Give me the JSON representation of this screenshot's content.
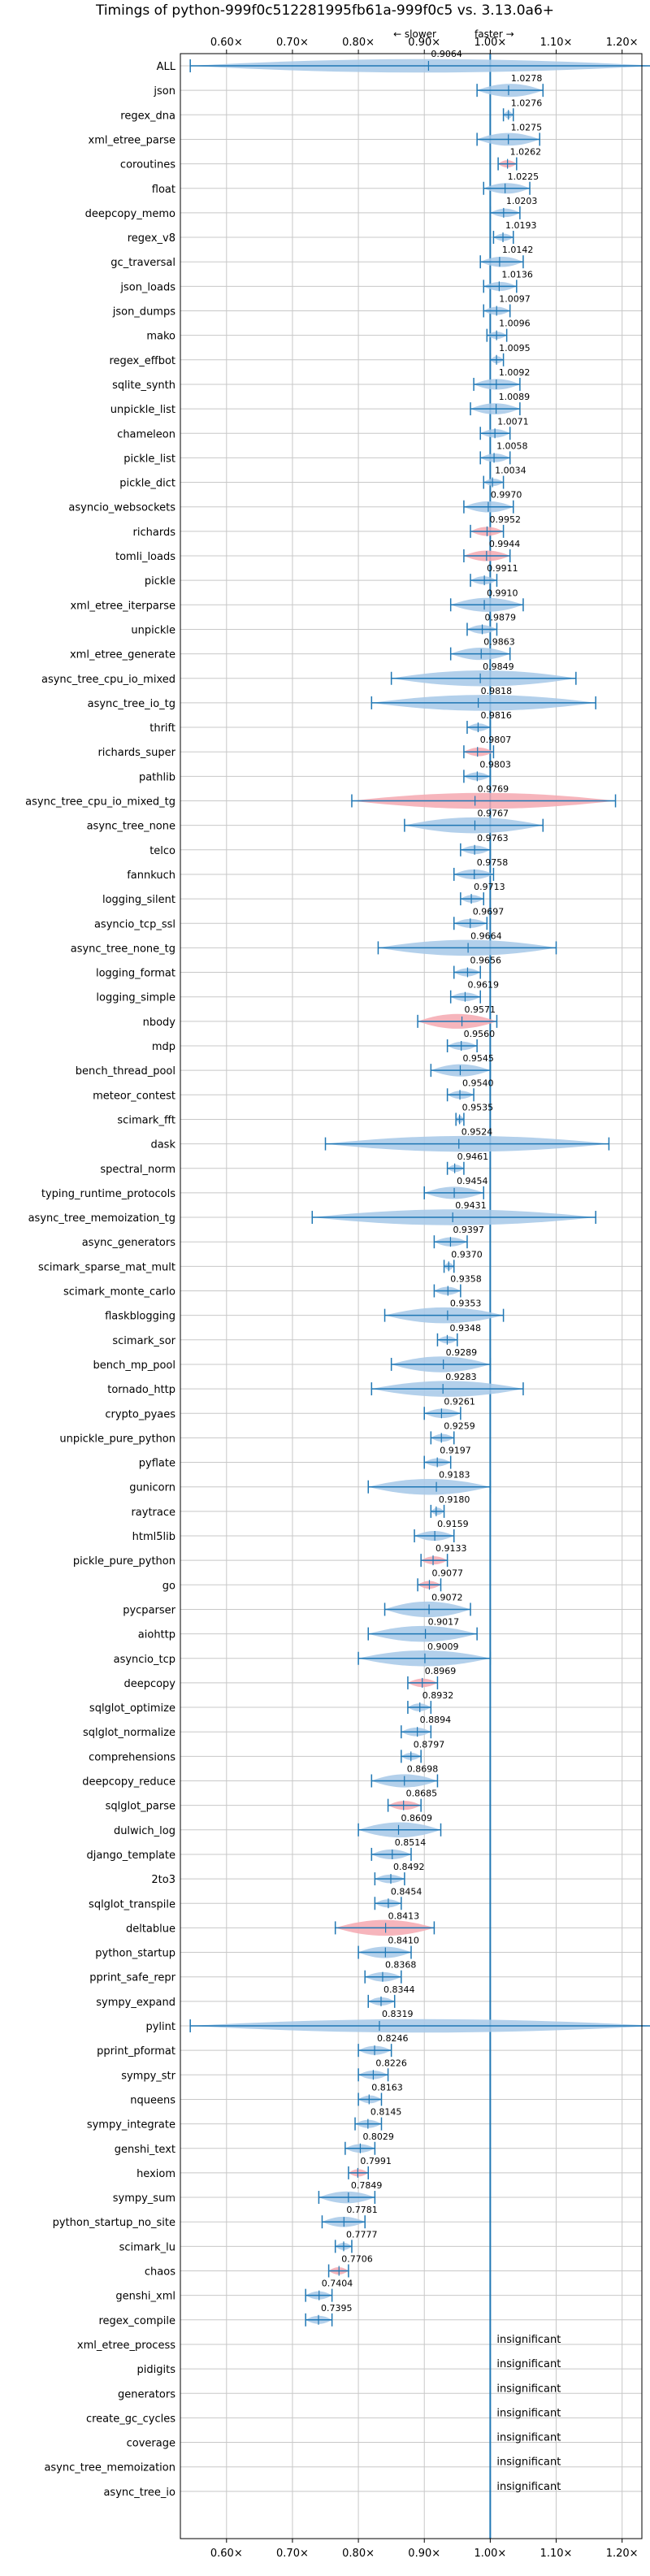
{
  "chart_data": {
    "type": "violin",
    "title": "Timings of python-999f0c512281995fb61a-999f0c5 vs. 3.13.0a6+",
    "direction_labels": {
      "slower": "← slower",
      "faster": "faster →"
    },
    "xlim": [
      0.53,
      1.23
    ],
    "x_ticks": [
      0.6,
      0.7,
      0.8,
      0.9,
      1.0,
      1.1,
      1.2
    ],
    "x_tick_labels": [
      "0.60×",
      "0.70×",
      "0.80×",
      "0.90×",
      "1.00×",
      "1.10×",
      "1.20×"
    ],
    "reference_x": 1.0,
    "grid": true,
    "colors": {
      "faster": "#a6c8e8",
      "slower": "#f4a8b0",
      "line": "#1f77b4"
    },
    "benchmarks": [
      {
        "name": "ALL",
        "value": "0.9064",
        "mean": 0.9064,
        "lo": 0.545,
        "hi": 1.25,
        "wide": true,
        "color": "blue"
      },
      {
        "name": "json",
        "value": "1.0278",
        "mean": 1.0278,
        "lo": 0.98,
        "hi": 1.08,
        "color": "blue"
      },
      {
        "name": "regex_dna",
        "value": "1.0276",
        "mean": 1.0276,
        "lo": 1.02,
        "hi": 1.035,
        "color": "blue"
      },
      {
        "name": "xml_etree_parse",
        "value": "1.0275",
        "mean": 1.0275,
        "lo": 0.98,
        "hi": 1.075,
        "color": "blue"
      },
      {
        "name": "coroutines",
        "value": "1.0262",
        "mean": 1.0262,
        "lo": 1.012,
        "hi": 1.04,
        "color": "red"
      },
      {
        "name": "float",
        "value": "1.0225",
        "mean": 1.0225,
        "lo": 0.99,
        "hi": 1.06,
        "color": "blue"
      },
      {
        "name": "deepcopy_memo",
        "value": "1.0203",
        "mean": 1.0203,
        "lo": 1.0,
        "hi": 1.045,
        "color": "blue"
      },
      {
        "name": "regex_v8",
        "value": "1.0193",
        "mean": 1.0193,
        "lo": 1.005,
        "hi": 1.035,
        "color": "blue"
      },
      {
        "name": "gc_traversal",
        "value": "1.0142",
        "mean": 1.0142,
        "lo": 0.985,
        "hi": 1.05,
        "color": "blue"
      },
      {
        "name": "json_loads",
        "value": "1.0136",
        "mean": 1.0136,
        "lo": 0.99,
        "hi": 1.04,
        "color": "blue"
      },
      {
        "name": "json_dumps",
        "value": "1.0097",
        "mean": 1.0097,
        "lo": 0.99,
        "hi": 1.03,
        "color": "blue"
      },
      {
        "name": "mako",
        "value": "1.0096",
        "mean": 1.0096,
        "lo": 0.995,
        "hi": 1.025,
        "color": "blue"
      },
      {
        "name": "regex_effbot",
        "value": "1.0095",
        "mean": 1.0095,
        "lo": 1.0,
        "hi": 1.02,
        "color": "blue"
      },
      {
        "name": "sqlite_synth",
        "value": "1.0092",
        "mean": 1.0092,
        "lo": 0.975,
        "hi": 1.045,
        "color": "blue"
      },
      {
        "name": "unpickle_list",
        "value": "1.0089",
        "mean": 1.0089,
        "lo": 0.97,
        "hi": 1.045,
        "color": "blue"
      },
      {
        "name": "chameleon",
        "value": "1.0071",
        "mean": 1.0071,
        "lo": 0.985,
        "hi": 1.03,
        "color": "blue"
      },
      {
        "name": "pickle_list",
        "value": "1.0058",
        "mean": 1.0058,
        "lo": 0.985,
        "hi": 1.03,
        "color": "blue"
      },
      {
        "name": "pickle_dict",
        "value": "1.0034",
        "mean": 1.0034,
        "lo": 0.99,
        "hi": 1.02,
        "color": "blue"
      },
      {
        "name": "asyncio_websockets",
        "value": "0.9970",
        "mean": 0.997,
        "lo": 0.96,
        "hi": 1.035,
        "color": "blue"
      },
      {
        "name": "richards",
        "value": "0.9952",
        "mean": 0.9952,
        "lo": 0.97,
        "hi": 1.02,
        "color": "red"
      },
      {
        "name": "tomli_loads",
        "value": "0.9944",
        "mean": 0.9944,
        "lo": 0.96,
        "hi": 1.03,
        "color": "red"
      },
      {
        "name": "pickle",
        "value": "0.9911",
        "mean": 0.9911,
        "lo": 0.97,
        "hi": 1.01,
        "color": "blue"
      },
      {
        "name": "xml_etree_iterparse",
        "value": "0.9910",
        "mean": 0.991,
        "lo": 0.94,
        "hi": 1.05,
        "color": "blue"
      },
      {
        "name": "unpickle",
        "value": "0.9879",
        "mean": 0.9879,
        "lo": 0.965,
        "hi": 1.01,
        "color": "blue"
      },
      {
        "name": "xml_etree_generate",
        "value": "0.9863",
        "mean": 0.9863,
        "lo": 0.94,
        "hi": 1.03,
        "color": "blue"
      },
      {
        "name": "async_tree_cpu_io_mixed",
        "value": "0.9849",
        "mean": 0.9849,
        "lo": 0.85,
        "hi": 1.13,
        "color": "blue"
      },
      {
        "name": "async_tree_io_tg",
        "value": "0.9818",
        "mean": 0.9818,
        "lo": 0.82,
        "hi": 1.16,
        "color": "blue"
      },
      {
        "name": "thrift",
        "value": "0.9816",
        "mean": 0.9816,
        "lo": 0.965,
        "hi": 1.0,
        "color": "blue"
      },
      {
        "name": "richards_super",
        "value": "0.9807",
        "mean": 0.9807,
        "lo": 0.96,
        "hi": 1.005,
        "color": "red"
      },
      {
        "name": "pathlib",
        "value": "0.9803",
        "mean": 0.9803,
        "lo": 0.96,
        "hi": 1.0,
        "color": "blue"
      },
      {
        "name": "async_tree_cpu_io_mixed_tg",
        "value": "0.9769",
        "mean": 0.9769,
        "lo": 0.79,
        "hi": 1.19,
        "color": "red"
      },
      {
        "name": "async_tree_none",
        "value": "0.9767",
        "mean": 0.9767,
        "lo": 0.87,
        "hi": 1.08,
        "color": "blue"
      },
      {
        "name": "telco",
        "value": "0.9763",
        "mean": 0.9763,
        "lo": 0.955,
        "hi": 1.0,
        "color": "blue"
      },
      {
        "name": "fannkuch",
        "value": "0.9758",
        "mean": 0.9758,
        "lo": 0.945,
        "hi": 1.005,
        "color": "blue"
      },
      {
        "name": "logging_silent",
        "value": "0.9713",
        "mean": 0.9713,
        "lo": 0.955,
        "hi": 0.99,
        "color": "blue"
      },
      {
        "name": "asyncio_tcp_ssl",
        "value": "0.9697",
        "mean": 0.9697,
        "lo": 0.945,
        "hi": 0.995,
        "color": "blue"
      },
      {
        "name": "async_tree_none_tg",
        "value": "0.9664",
        "mean": 0.9664,
        "lo": 0.83,
        "hi": 1.1,
        "color": "blue"
      },
      {
        "name": "logging_format",
        "value": "0.9656",
        "mean": 0.9656,
        "lo": 0.945,
        "hi": 0.985,
        "color": "blue"
      },
      {
        "name": "logging_simple",
        "value": "0.9619",
        "mean": 0.9619,
        "lo": 0.94,
        "hi": 0.985,
        "color": "blue"
      },
      {
        "name": "nbody",
        "value": "0.9571",
        "mean": 0.9571,
        "lo": 0.89,
        "hi": 1.01,
        "color": "red"
      },
      {
        "name": "mdp",
        "value": "0.9560",
        "mean": 0.956,
        "lo": 0.935,
        "hi": 0.98,
        "color": "blue"
      },
      {
        "name": "bench_thread_pool",
        "value": "0.9545",
        "mean": 0.9545,
        "lo": 0.91,
        "hi": 1.0,
        "color": "blue"
      },
      {
        "name": "meteor_contest",
        "value": "0.9540",
        "mean": 0.954,
        "lo": 0.935,
        "hi": 0.975,
        "color": "blue"
      },
      {
        "name": "scimark_fft",
        "value": "0.9535",
        "mean": 0.9535,
        "lo": 0.948,
        "hi": 0.96,
        "color": "blue"
      },
      {
        "name": "dask",
        "value": "0.9524",
        "mean": 0.9524,
        "lo": 0.75,
        "hi": 1.18,
        "color": "blue"
      },
      {
        "name": "spectral_norm",
        "value": "0.9461",
        "mean": 0.9461,
        "lo": 0.935,
        "hi": 0.96,
        "color": "blue"
      },
      {
        "name": "typing_runtime_protocols",
        "value": "0.9454",
        "mean": 0.9454,
        "lo": 0.9,
        "hi": 0.99,
        "color": "blue"
      },
      {
        "name": "async_tree_memoization_tg",
        "value": "0.9431",
        "mean": 0.9431,
        "lo": 0.73,
        "hi": 1.16,
        "color": "blue"
      },
      {
        "name": "async_generators",
        "value": "0.9397",
        "mean": 0.9397,
        "lo": 0.915,
        "hi": 0.965,
        "color": "blue"
      },
      {
        "name": "scimark_sparse_mat_mult",
        "value": "0.9370",
        "mean": 0.937,
        "lo": 0.93,
        "hi": 0.945,
        "color": "blue"
      },
      {
        "name": "scimark_monte_carlo",
        "value": "0.9358",
        "mean": 0.9358,
        "lo": 0.915,
        "hi": 0.955,
        "color": "blue"
      },
      {
        "name": "flaskblogging",
        "value": "0.9353",
        "mean": 0.9353,
        "lo": 0.84,
        "hi": 1.02,
        "color": "blue"
      },
      {
        "name": "scimark_sor",
        "value": "0.9348",
        "mean": 0.9348,
        "lo": 0.92,
        "hi": 0.95,
        "color": "blue"
      },
      {
        "name": "bench_mp_pool",
        "value": "0.9289",
        "mean": 0.9289,
        "lo": 0.85,
        "hi": 1.0,
        "color": "blue"
      },
      {
        "name": "tornado_http",
        "value": "0.9283",
        "mean": 0.9283,
        "lo": 0.82,
        "hi": 1.05,
        "color": "blue"
      },
      {
        "name": "crypto_pyaes",
        "value": "0.9261",
        "mean": 0.9261,
        "lo": 0.9,
        "hi": 0.955,
        "color": "blue"
      },
      {
        "name": "unpickle_pure_python",
        "value": "0.9259",
        "mean": 0.9259,
        "lo": 0.91,
        "hi": 0.945,
        "color": "blue"
      },
      {
        "name": "pyflate",
        "value": "0.9197",
        "mean": 0.9197,
        "lo": 0.9,
        "hi": 0.94,
        "color": "blue"
      },
      {
        "name": "gunicorn",
        "value": "0.9183",
        "mean": 0.9183,
        "lo": 0.815,
        "hi": 1.0,
        "color": "blue"
      },
      {
        "name": "raytrace",
        "value": "0.9180",
        "mean": 0.918,
        "lo": 0.91,
        "hi": 0.93,
        "color": "blue"
      },
      {
        "name": "html5lib",
        "value": "0.9159",
        "mean": 0.9159,
        "lo": 0.885,
        "hi": 0.945,
        "color": "blue"
      },
      {
        "name": "pickle_pure_python",
        "value": "0.9133",
        "mean": 0.9133,
        "lo": 0.895,
        "hi": 0.935,
        "color": "red"
      },
      {
        "name": "go",
        "value": "0.9077",
        "mean": 0.9077,
        "lo": 0.89,
        "hi": 0.925,
        "color": "red"
      },
      {
        "name": "pycparser",
        "value": "0.9072",
        "mean": 0.9072,
        "lo": 0.84,
        "hi": 0.97,
        "color": "blue"
      },
      {
        "name": "aiohttp",
        "value": "0.9017",
        "mean": 0.9017,
        "lo": 0.815,
        "hi": 0.98,
        "color": "blue"
      },
      {
        "name": "asyncio_tcp",
        "value": "0.9009",
        "mean": 0.9009,
        "lo": 0.8,
        "hi": 1.0,
        "color": "blue"
      },
      {
        "name": "deepcopy",
        "value": "0.8969",
        "mean": 0.8969,
        "lo": 0.875,
        "hi": 0.92,
        "color": "red"
      },
      {
        "name": "sqlglot_optimize",
        "value": "0.8932",
        "mean": 0.8932,
        "lo": 0.875,
        "hi": 0.91,
        "color": "blue"
      },
      {
        "name": "sqlglot_normalize",
        "value": "0.8894",
        "mean": 0.8894,
        "lo": 0.865,
        "hi": 0.91,
        "color": "blue"
      },
      {
        "name": "comprehensions",
        "value": "0.8797",
        "mean": 0.8797,
        "lo": 0.865,
        "hi": 0.895,
        "color": "blue"
      },
      {
        "name": "deepcopy_reduce",
        "value": "0.8698",
        "mean": 0.8698,
        "lo": 0.82,
        "hi": 0.92,
        "color": "blue"
      },
      {
        "name": "sqlglot_parse",
        "value": "0.8685",
        "mean": 0.8685,
        "lo": 0.845,
        "hi": 0.895,
        "color": "red"
      },
      {
        "name": "dulwich_log",
        "value": "0.8609",
        "mean": 0.8609,
        "lo": 0.8,
        "hi": 0.925,
        "color": "blue"
      },
      {
        "name": "django_template",
        "value": "0.8514",
        "mean": 0.8514,
        "lo": 0.82,
        "hi": 0.88,
        "color": "blue"
      },
      {
        "name": "2to3",
        "value": "0.8492",
        "mean": 0.8492,
        "lo": 0.825,
        "hi": 0.87,
        "color": "blue"
      },
      {
        "name": "sqlglot_transpile",
        "value": "0.8454",
        "mean": 0.8454,
        "lo": 0.825,
        "hi": 0.865,
        "color": "blue"
      },
      {
        "name": "deltablue",
        "value": "0.8413",
        "mean": 0.8413,
        "lo": 0.765,
        "hi": 0.915,
        "color": "red"
      },
      {
        "name": "python_startup",
        "value": "0.8410",
        "mean": 0.841,
        "lo": 0.8,
        "hi": 0.88,
        "color": "blue"
      },
      {
        "name": "pprint_safe_repr",
        "value": "0.8368",
        "mean": 0.8368,
        "lo": 0.81,
        "hi": 0.865,
        "color": "blue"
      },
      {
        "name": "sympy_expand",
        "value": "0.8344",
        "mean": 0.8344,
        "lo": 0.815,
        "hi": 0.855,
        "color": "blue"
      },
      {
        "name": "pylint",
        "value": "0.8319",
        "mean": 0.8319,
        "lo": 0.545,
        "hi": 1.25,
        "wide": true,
        "color": "blue"
      },
      {
        "name": "pprint_pformat",
        "value": "0.8246",
        "mean": 0.8246,
        "lo": 0.8,
        "hi": 0.85,
        "color": "blue"
      },
      {
        "name": "sympy_str",
        "value": "0.8226",
        "mean": 0.8226,
        "lo": 0.8,
        "hi": 0.845,
        "color": "blue"
      },
      {
        "name": "nqueens",
        "value": "0.8163",
        "mean": 0.8163,
        "lo": 0.8,
        "hi": 0.835,
        "color": "blue"
      },
      {
        "name": "sympy_integrate",
        "value": "0.8145",
        "mean": 0.8145,
        "lo": 0.795,
        "hi": 0.835,
        "color": "blue"
      },
      {
        "name": "genshi_text",
        "value": "0.8029",
        "mean": 0.8029,
        "lo": 0.78,
        "hi": 0.825,
        "color": "blue"
      },
      {
        "name": "hexiom",
        "value": "0.7991",
        "mean": 0.7991,
        "lo": 0.785,
        "hi": 0.815,
        "color": "red"
      },
      {
        "name": "sympy_sum",
        "value": "0.7849",
        "mean": 0.7849,
        "lo": 0.74,
        "hi": 0.825,
        "color": "blue"
      },
      {
        "name": "python_startup_no_site",
        "value": "0.7781",
        "mean": 0.7781,
        "lo": 0.745,
        "hi": 0.81,
        "color": "blue"
      },
      {
        "name": "scimark_lu",
        "value": "0.7777",
        "mean": 0.7777,
        "lo": 0.765,
        "hi": 0.79,
        "color": "blue"
      },
      {
        "name": "chaos",
        "value": "0.7706",
        "mean": 0.7706,
        "lo": 0.755,
        "hi": 0.785,
        "color": "red"
      },
      {
        "name": "genshi_xml",
        "value": "0.7404",
        "mean": 0.7404,
        "lo": 0.72,
        "hi": 0.76,
        "color": "blue"
      },
      {
        "name": "regex_compile",
        "value": "0.7395",
        "mean": 0.7395,
        "lo": 0.72,
        "hi": 0.76,
        "color": "blue"
      },
      {
        "name": "xml_etree_process",
        "value": "insignificant",
        "mean": null
      },
      {
        "name": "pidigits",
        "value": "insignificant",
        "mean": null
      },
      {
        "name": "generators",
        "value": "insignificant",
        "mean": null
      },
      {
        "name": "create_gc_cycles",
        "value": "insignificant",
        "mean": null
      },
      {
        "name": "coverage",
        "value": "insignificant",
        "mean": null
      },
      {
        "name": "async_tree_memoization",
        "value": "insignificant",
        "mean": null
      },
      {
        "name": "async_tree_io",
        "value": "insignificant",
        "mean": null
      }
    ]
  }
}
